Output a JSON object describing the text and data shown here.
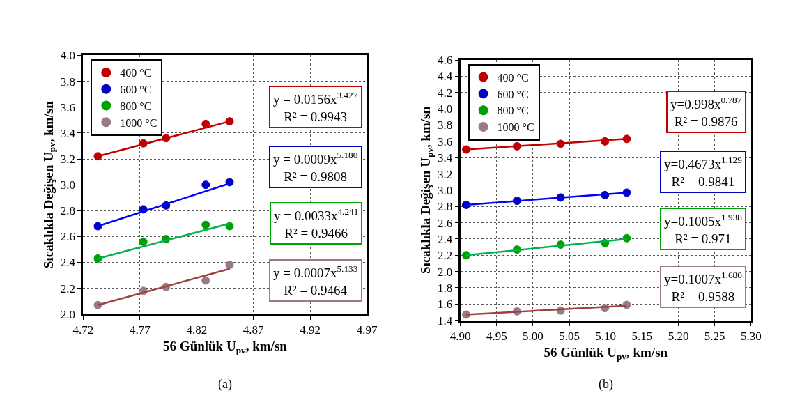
{
  "chart_data": [
    {
      "type": "scatter",
      "xlabel": "56 Günlük U$_{pv}$, km/sn",
      "ylabel": "Sıcaklıkla Değişen U$_{pv}$, km/sn",
      "xlim": [
        4.72,
        4.97
      ],
      "xticks": [
        4.72,
        4.77,
        4.82,
        4.87,
        4.92,
        4.97
      ],
      "ylim": [
        2.0,
        4.0
      ],
      "yticks": [
        {
          "value": 2.0,
          "label": "2.0"
        },
        2.2,
        2.4,
        2.6,
        2.8,
        {
          "value": 3.0,
          "label": "3.0"
        },
        3.2,
        3.4,
        3.6,
        3.8,
        {
          "value": 4.0,
          "label": "4.0"
        }
      ],
      "grid": true,
      "legend": "top left",
      "marker": "circle",
      "x": [
        4.733,
        4.773,
        4.793,
        4.828,
        4.849
      ],
      "series": [
        {
          "name": "400 °C",
          "color": "#c00000",
          "values": [
            3.22,
            3.32,
            3.36,
            3.47,
            3.49
          ]
        },
        {
          "name": "600 °C",
          "color": "#0000c0",
          "values": [
            2.68,
            2.81,
            2.84,
            3.0,
            3.02
          ]
        },
        {
          "name": "800 °C",
          "color": "#00a000",
          "values": [
            2.43,
            2.56,
            2.58,
            2.69,
            2.68
          ]
        },
        {
          "name": "1000 °C",
          "color": "#9a7a8a",
          "values": [
            2.07,
            2.18,
            2.21,
            2.26,
            2.38
          ]
        },
        {
          "type": "line",
          "marker": "none",
          "color": "#c00000",
          "x": [
            4.733,
            4.849
          ],
          "values": [
            3.22,
            3.49
          ]
        },
        {
          "type": "line",
          "marker": "none",
          "color": "#0000ff",
          "x": [
            4.733,
            4.849
          ],
          "values": [
            2.68,
            3.01
          ]
        },
        {
          "type": "line",
          "marker": "none",
          "color": "#00b050",
          "x": [
            4.733,
            4.849
          ],
          "values": [
            2.43,
            2.7
          ]
        },
        {
          "type": "line",
          "marker": "none",
          "color": "#a0403c",
          "x": [
            4.733,
            4.849
          ],
          "values": [
            2.07,
            2.35
          ]
        }
      ],
      "annotations": [
        "y = 0.0156x$^{3.427}$\nR² = 0.9943",
        "y = 0.0009x$^{5.180}$\nR² = 0.9808",
        "y = 0.0033x$^{4.241}$\nR² = 0.9466",
        "y = 0.0007x$^{5.133}$\nR² = 0.9464",
        "(a)"
      ]
    },
    {
      "type": "scatter",
      "xlabel": "56 Günlük U$_{pv}$, km/sn",
      "ylabel": "Sıcaklıkla Değişen U$_{pv}$, km/sn",
      "xlim": [
        4.9,
        5.3
      ],
      "xticks": [
        {
          "value": 4.9,
          "label": "4.90"
        },
        4.95,
        {
          "value": 5.0,
          "label": "5.00"
        },
        5.05,
        {
          "value": 5.1,
          "label": "5.10"
        },
        5.15,
        {
          "value": 5.2,
          "label": "5.20"
        },
        5.25,
        {
          "value": 5.3,
          "label": "5.30"
        }
      ],
      "ylim": [
        1.4,
        4.6
      ],
      "yticks": [
        1.4,
        1.6,
        1.8,
        {
          "value": 2.0,
          "label": "2.0"
        },
        2.2,
        2.4,
        2.6,
        2.8,
        {
          "value": 3.0,
          "label": "3.0"
        },
        3.2,
        3.4,
        3.6,
        3.8,
        {
          "value": 4.0,
          "label": "4.0"
        },
        4.2,
        4.4,
        4.6
      ],
      "grid": true,
      "legend": "top left",
      "marker": "circle",
      "x": [
        4.908,
        4.978,
        5.038,
        5.099,
        5.129
      ],
      "series": [
        {
          "name": "400 °C",
          "color": "#c00000",
          "values": [
            3.5,
            3.54,
            3.57,
            3.6,
            3.63
          ]
        },
        {
          "name": "600 °C",
          "color": "#0000c0",
          "values": [
            2.82,
            2.87,
            2.91,
            2.94,
            2.97
          ]
        },
        {
          "name": "800 °C",
          "color": "#00a000",
          "values": [
            2.2,
            2.27,
            2.33,
            2.35,
            2.41
          ]
        },
        {
          "name": "1000 °C",
          "color": "#9a7a8a",
          "values": [
            1.47,
            1.51,
            1.52,
            1.55,
            1.59
          ]
        },
        {
          "type": "line",
          "marker": "none",
          "color": "#c00000",
          "x": [
            4.908,
            5.129
          ],
          "values": [
            3.5,
            3.63
          ]
        },
        {
          "type": "line",
          "marker": "none",
          "color": "#0000ff",
          "x": [
            4.908,
            5.129
          ],
          "values": [
            2.82,
            2.97
          ]
        },
        {
          "type": "line",
          "marker": "none",
          "color": "#00b050",
          "x": [
            4.908,
            5.129
          ],
          "values": [
            2.2,
            2.4
          ]
        },
        {
          "type": "line",
          "marker": "none",
          "color": "#a0403c",
          "x": [
            4.908,
            5.129
          ],
          "values": [
            1.47,
            1.58
          ]
        }
      ],
      "annotations": [
        "y=0.998x$^{0.787}$\nR² = 0.9876",
        "y=0.4673x$^{1.129}$\nR² = 0.9841",
        "y=0.1005x$^{1.938}$\nR² = 0.971",
        "y=0.1007x$^{1.680}$\nR² = 0.9588",
        "(b)"
      ]
    }
  ]
}
